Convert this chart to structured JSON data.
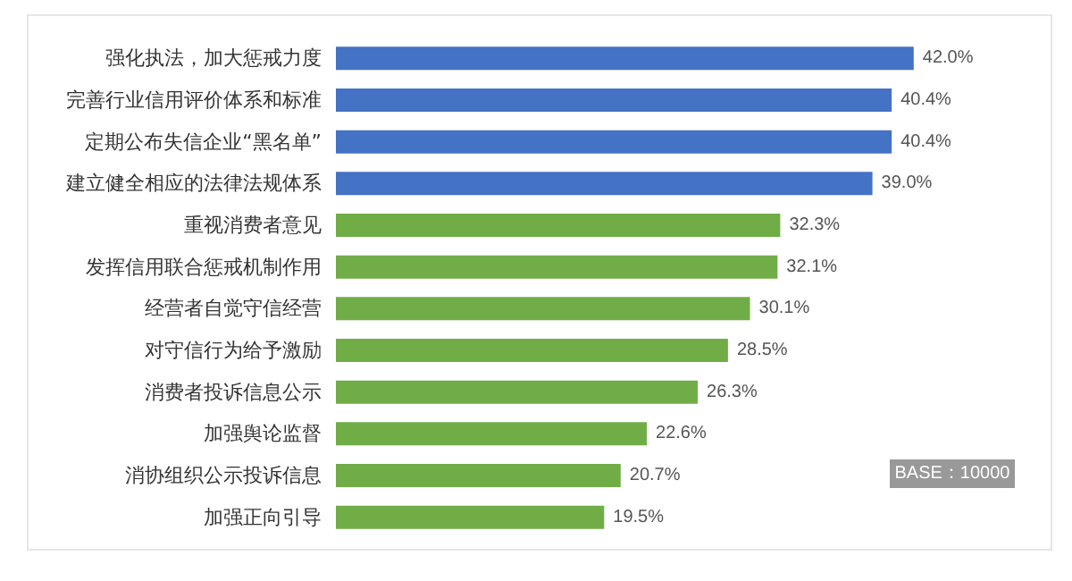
{
  "chart_data": {
    "type": "bar",
    "orientation": "horizontal",
    "categories": [
      "强化执法，加大惩戒力度",
      "完善行业信用评价体系和标准",
      "定期公布失信企业“黑名单”",
      "建立健全相应的法律法规体系",
      "重视消费者意见",
      "发挥信用联合惩戒机制作用",
      "经营者自觉守信经营",
      "对守信行为给予激励",
      "消费者投诉信息公示",
      "加强舆论监督",
      "消协组织公示投诉信息",
      "加强正向引导"
    ],
    "values": [
      42.0,
      40.4,
      40.4,
      39.0,
      32.3,
      32.1,
      30.1,
      28.5,
      26.3,
      22.6,
      20.7,
      19.5
    ],
    "value_labels": [
      "42.0%",
      "40.4%",
      "40.4%",
      "39.0%",
      "32.3%",
      "32.1%",
      "30.1%",
      "28.5%",
      "26.3%",
      "22.6%",
      "20.7%",
      "19.5%"
    ],
    "colors": [
      "#4472c4",
      "#4472c4",
      "#4472c4",
      "#4472c4",
      "#70ad47",
      "#70ad47",
      "#70ad47",
      "#70ad47",
      "#70ad47",
      "#70ad47",
      "#70ad47",
      "#70ad47"
    ],
    "annotations": [
      "BASE：10000"
    ],
    "tick_labels": "y"
  }
}
